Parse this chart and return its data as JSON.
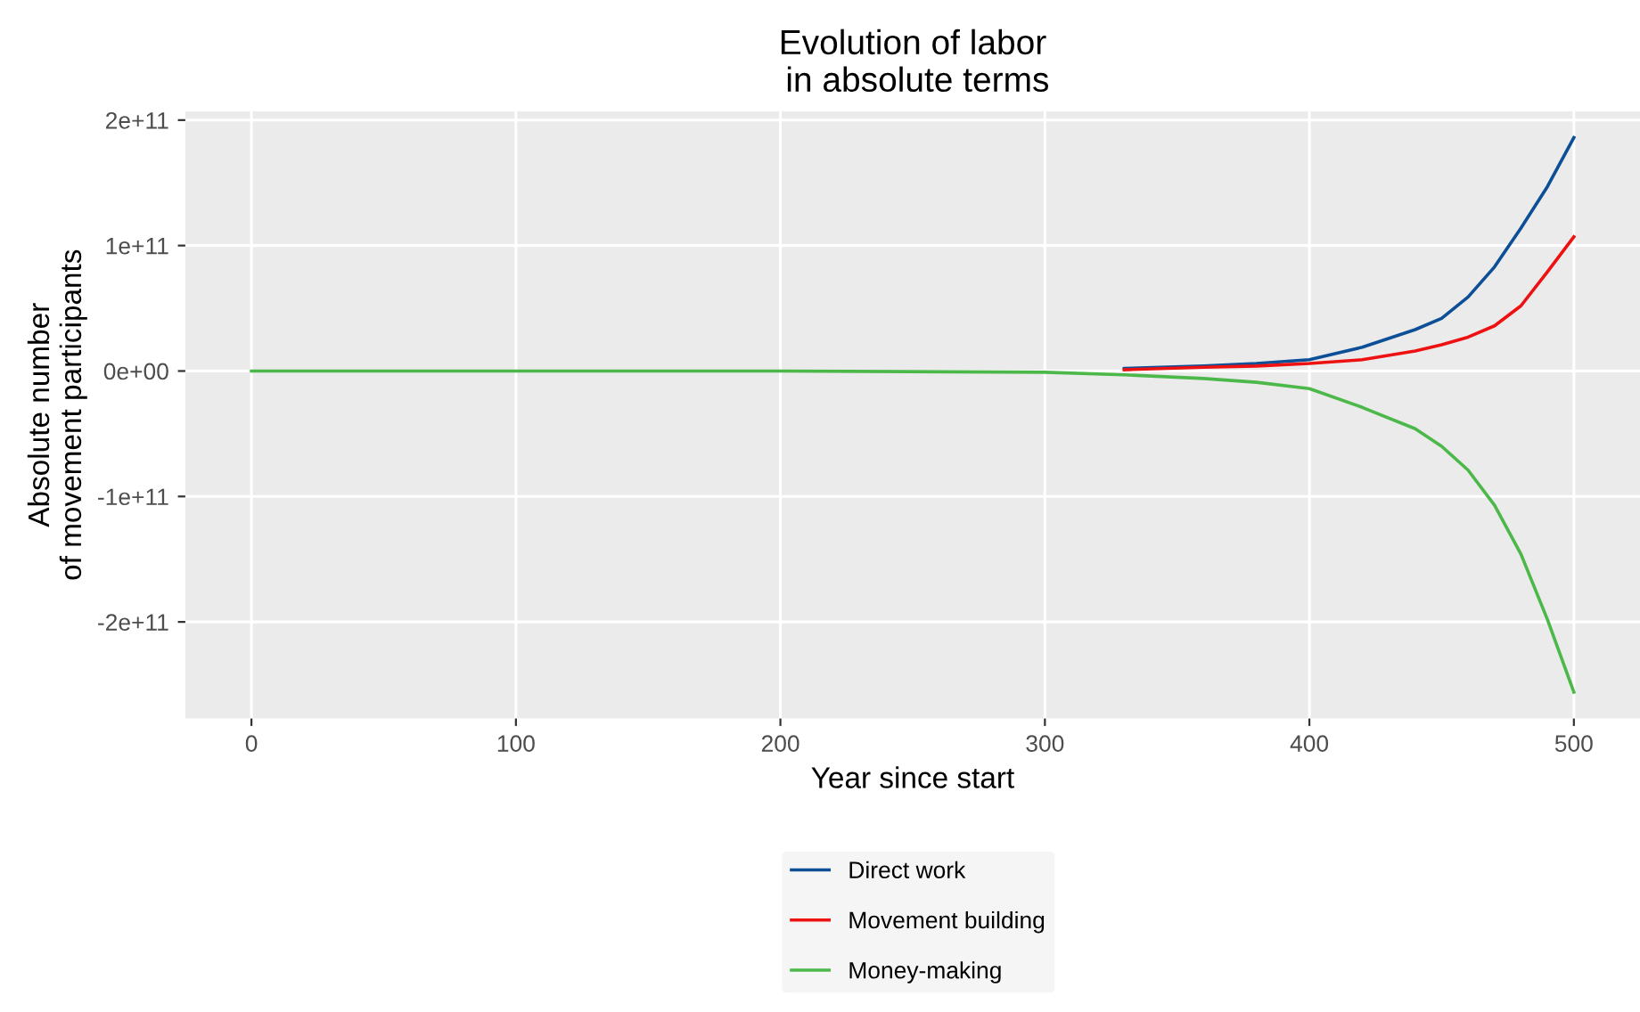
{
  "chart_data": {
    "type": "line",
    "title": "Evolution of labor\n in absolute terms",
    "xlabel": "Year since start",
    "ylabel": "Absolute number\nof movement participants",
    "x": [
      0,
      100,
      200,
      300,
      330,
      360,
      380,
      400,
      420,
      440,
      450,
      460,
      470,
      480,
      490,
      500
    ],
    "series": [
      {
        "name": "Direct work",
        "color": "#0c4f97",
        "values": [
          null,
          null,
          null,
          null,
          2000000000.0,
          4000000000.0,
          6000000000.0,
          9000000000.0,
          19000000000.0,
          33000000000.0,
          42000000000.0,
          59000000000.0,
          83000000000.0,
          114000000000.0,
          147000000000.0,
          186000000000.0
        ]
      },
      {
        "name": "Movement building",
        "color": "#ee1111",
        "values": [
          null,
          null,
          null,
          null,
          1000000000.0,
          3000000000.0,
          4000000000.0,
          6000000000.0,
          9000000000.0,
          16000000000.0,
          21000000000.0,
          27000000000.0,
          36000000000.0,
          52000000000.0,
          79000000000.0,
          107000000000.0
        ]
      },
      {
        "name": "Money-making",
        "color": "#4db84a",
        "values": [
          0,
          0,
          0,
          -1000000000.0,
          -3000000000.0,
          -6000000000.0,
          -9000000000.0,
          -14000000000.0,
          -29000000000.0,
          -46000000000.0,
          -60000000000.0,
          -79000000000.0,
          -107000000000.0,
          -146000000000.0,
          -198000000000.0,
          -256000000000.0
        ]
      }
    ],
    "xlim": [
      -25,
      525
    ],
    "xticks": [
      0,
      100,
      200,
      300,
      400,
      500
    ],
    "ylim": [
      -277000000000.0,
      207000000000.0
    ],
    "yticks": [
      {
        "value": -200000000000.0,
        "label": "-2e+11"
      },
      {
        "value": -100000000000.0,
        "label": "-1e+11"
      },
      {
        "value": 0,
        "label": "0e+00"
      },
      {
        "value": 100000000000.0,
        "label": "1e+11"
      },
      {
        "value": 200000000000.0,
        "label": "2e+11"
      }
    ],
    "grid": true,
    "legend": "bottom",
    "line_style": "solid",
    "marker": "none"
  }
}
